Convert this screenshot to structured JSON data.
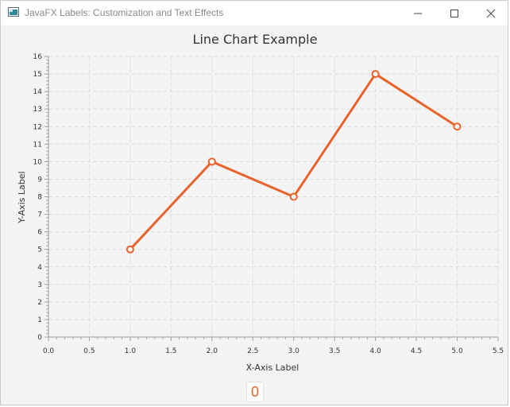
{
  "window": {
    "title": "JavaFX Labels: Customization and Text Effects",
    "icon": "java-app-icon",
    "controls": [
      "minimize-icon",
      "maximize-icon",
      "close-icon"
    ]
  },
  "chart_data": {
    "type": "line",
    "title": "Line Chart Example",
    "xlabel": "X-Axis Label",
    "ylabel": "Y-Axis Label",
    "xlim": [
      0,
      5.5
    ],
    "ylim": [
      0,
      16
    ],
    "x_ticks": [
      "0.0",
      "0.5",
      "1.0",
      "1.5",
      "2.0",
      "2.5",
      "3.0",
      "3.5",
      "4.0",
      "4.5",
      "5.0",
      "5.5"
    ],
    "y_ticks": [
      "0",
      "1",
      "2",
      "3",
      "4",
      "5",
      "6",
      "7",
      "8",
      "9",
      "10",
      "11",
      "12",
      "13",
      "14",
      "15",
      "16"
    ],
    "grid": true,
    "series": [
      {
        "x": [
          1,
          2,
          3,
          4,
          5
        ],
        "y": [
          5,
          10,
          8,
          15,
          12
        ],
        "color": "#e8622c"
      }
    ]
  },
  "counter": {
    "value": "0",
    "color": "#e8622c"
  }
}
